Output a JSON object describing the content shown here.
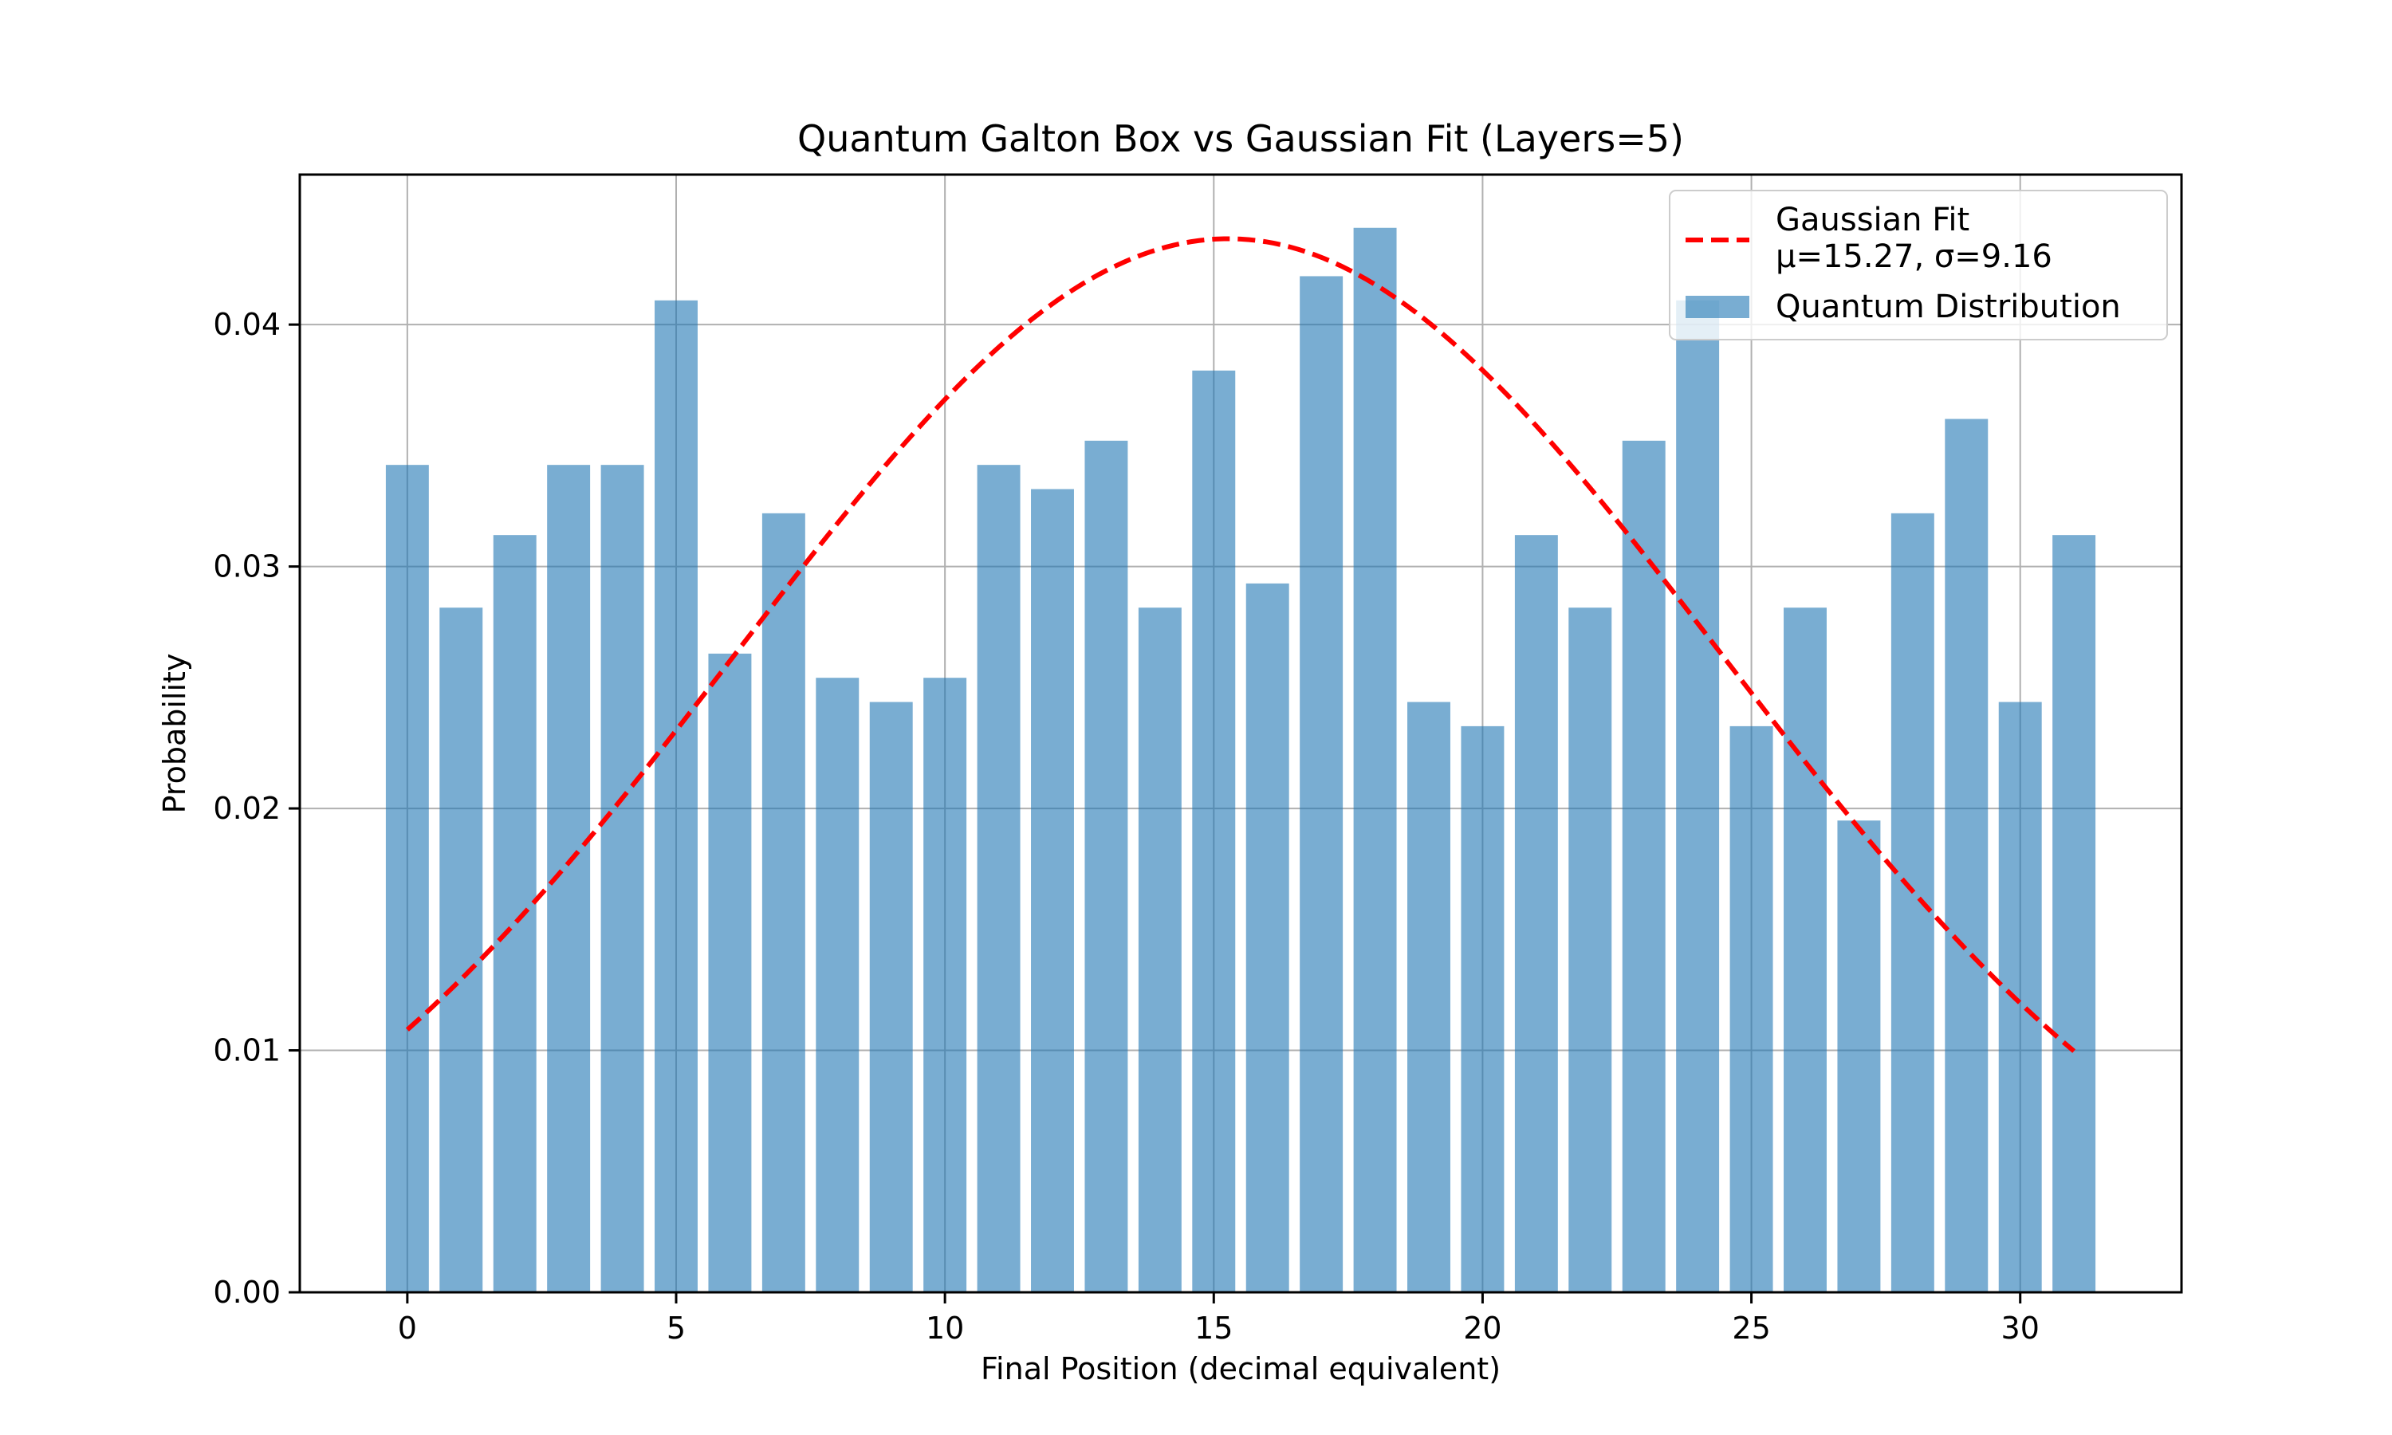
{
  "chart_data": {
    "type": "bar",
    "title": "Quantum Galton Box vs Gaussian Fit (Layers=5)",
    "xlabel": "Final Position (decimal equivalent)",
    "ylabel": "Probability",
    "x": [
      0,
      1,
      2,
      3,
      4,
      5,
      6,
      7,
      8,
      9,
      10,
      11,
      12,
      13,
      14,
      15,
      16,
      17,
      18,
      19,
      20,
      21,
      22,
      23,
      24,
      25,
      26,
      27,
      28,
      29,
      30,
      31
    ],
    "series": [
      {
        "name": "Quantum Distribution",
        "type": "bar",
        "color": "#1f77b4",
        "opacity": 0.6,
        "values": [
          0.0342,
          0.0283,
          0.0313,
          0.0342,
          0.0342,
          0.041,
          0.0264,
          0.0322,
          0.0254,
          0.0244,
          0.0254,
          0.0342,
          0.0332,
          0.0352,
          0.0283,
          0.0381,
          0.0293,
          0.042,
          0.044,
          0.0244,
          0.0234,
          0.0313,
          0.0283,
          0.0352,
          0.041,
          0.0234,
          0.0283,
          0.0195,
          0.0322,
          0.0361,
          0.0244,
          0.0313
        ]
      },
      {
        "name": "Gaussian Fit\nμ=15.27, σ=9.16",
        "type": "line",
        "style": "dashed",
        "color": "#ff0000",
        "mu": 15.27,
        "sigma": 9.16,
        "amplitude": 0.04355,
        "x_range": [
          0,
          31
        ]
      }
    ],
    "xlim": [
      -2,
      33
    ],
    "ylim": [
      0,
      0.0462
    ],
    "xticks": [
      0,
      5,
      10,
      15,
      20,
      25,
      30
    ],
    "xtick_labels": [
      "0",
      "5",
      "10",
      "15",
      "20",
      "25",
      "30"
    ],
    "yticks": [
      0,
      0.01,
      0.02,
      0.03,
      0.04
    ],
    "ytick_labels": [
      "0.00",
      "0.01",
      "0.02",
      "0.03",
      "0.04"
    ],
    "grid": true,
    "legend_position": "top-right",
    "legend": [
      {
        "label_lines": [
          "Gaussian Fit",
          "μ=15.27, σ=9.16"
        ],
        "marker": "dashed-line",
        "color": "#ff0000"
      },
      {
        "label_lines": [
          "Quantum Distribution"
        ],
        "marker": "patch",
        "color": "#1f77b4"
      }
    ]
  }
}
